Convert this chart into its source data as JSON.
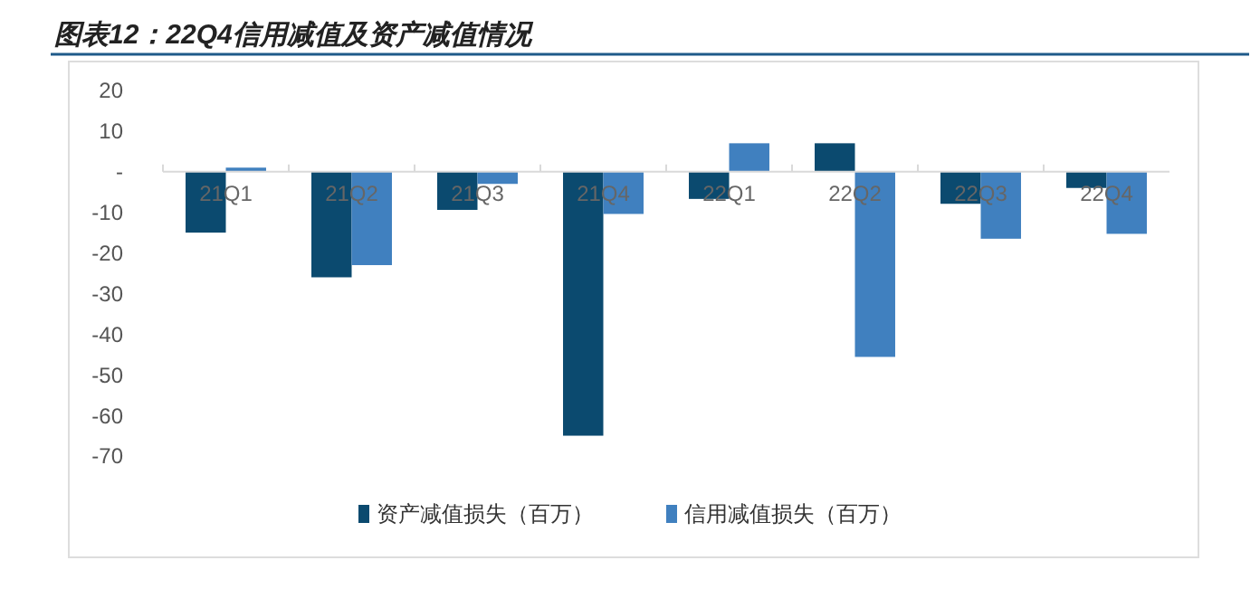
{
  "chart_data": {
    "type": "bar",
    "title": "图表12：22Q4信用减值及资产减值情况",
    "categories": [
      "21Q1",
      "21Q2",
      "21Q3",
      "21Q4",
      "22Q1",
      "22Q2",
      "22Q3",
      "22Q4"
    ],
    "series": [
      {
        "name": "资产减值损失（百万）",
        "color": "#0b4a6f",
        "values": [
          -15,
          -26,
          -9.4,
          -65,
          -6.7,
          7,
          -7.9,
          -4
        ]
      },
      {
        "name": "信用减值损失（百万）",
        "color": "#4080bf",
        "values": [
          1,
          -23,
          -3,
          -10.4,
          7,
          -45.6,
          -16.5,
          -15.3
        ]
      }
    ],
    "ylim": [
      -70,
      20
    ],
    "yticks": [
      20,
      10,
      {
        "value": 0,
        "label": "-"
      },
      -10,
      -20,
      -30,
      -40,
      -50,
      -60,
      -70
    ],
    "grid": false,
    "legend": "bottom"
  }
}
